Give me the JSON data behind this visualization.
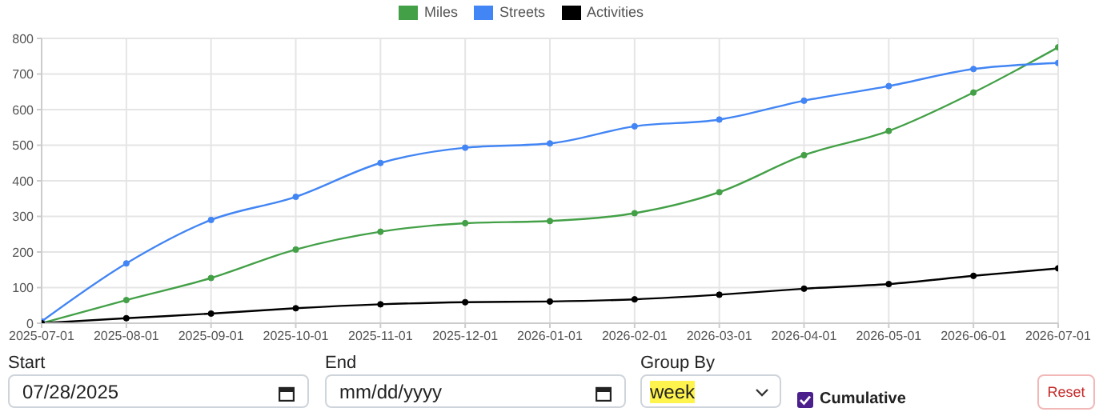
{
  "chart_data": {
    "type": "line",
    "categories": [
      "2025-07-01",
      "2025-08-01",
      "2025-09-01",
      "2025-10-01",
      "2025-11-01",
      "2025-12-01",
      "2026-01-01",
      "2026-02-01",
      "2026-03-01",
      "2026-04-01",
      "2026-05-01",
      "2026-06-01",
      "2026-07-01"
    ],
    "series": [
      {
        "name": "Miles",
        "color": "#43a047",
        "values": [
          0,
          65,
          127,
          207,
          257,
          281,
          287,
          309,
          368,
          472,
          540,
          648,
          775
        ]
      },
      {
        "name": "Streets",
        "color": "#4285f4",
        "values": [
          5,
          168,
          290,
          355,
          450,
          493,
          505,
          553,
          572,
          625,
          666,
          714,
          731
        ]
      },
      {
        "name": "Activities",
        "color": "#000000",
        "values": [
          0,
          14,
          27,
          42,
          53,
          59,
          61,
          67,
          80,
          97,
          110,
          133,
          154
        ]
      }
    ],
    "ylim": [
      0,
      800
    ],
    "yticks": [
      0,
      100,
      200,
      300,
      400,
      500,
      600,
      700,
      800
    ],
    "grid": true,
    "legend": "top",
    "marker": "circle",
    "annotations": [
      "Start",
      "07/28/2025",
      "End",
      "mm/dd/yyyy",
      "Group By",
      "week",
      "Cumulative",
      "Reset"
    ]
  }
}
